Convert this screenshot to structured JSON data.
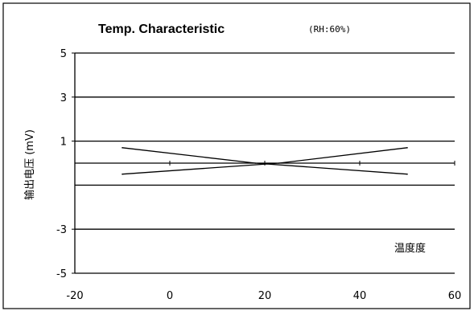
{
  "chart_data": {
    "type": "line",
    "title": "Temp. Characteristic",
    "subtitle": "(RH:60%)",
    "ylabel": "输出电压 (mV)",
    "xlabel": "温度度",
    "xlim": [
      -20,
      60
    ],
    "ylim": [
      -5,
      5
    ],
    "x_ticks": [
      -20,
      0,
      20,
      40,
      60
    ],
    "y_ticks": [
      {
        "value": 5,
        "label": "5"
      },
      {
        "value": 3,
        "label": "3"
      },
      {
        "value": 1,
        "label": "1"
      },
      {
        "value": -3,
        "label": "-3"
      },
      {
        "value": -5,
        "label": "-5"
      }
    ],
    "gridlines_y": [
      5,
      3,
      1,
      0,
      -1,
      -3,
      -5
    ],
    "grid": true,
    "legend": "none",
    "series": [
      {
        "x": [
          -10,
          18,
          50
        ],
        "y": [
          0.7,
          0.0,
          -0.5
        ]
      },
      {
        "x": [
          -10,
          23,
          50
        ],
        "y": [
          -0.5,
          0.0,
          0.7
        ]
      }
    ],
    "colors": {
      "line": "#000000",
      "grid": "#000000",
      "background": "#ffffff"
    }
  }
}
